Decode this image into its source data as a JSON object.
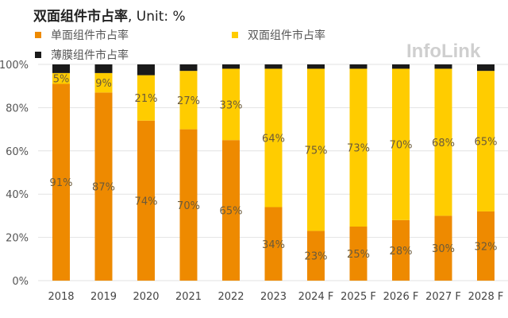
{
  "chart_data": {
    "type": "bar",
    "stacked": true,
    "title": "双面组件市占率",
    "title_unit": ", Unit: %",
    "categories": [
      "2018",
      "2019",
      "2020",
      "2021",
      "2022",
      "2023",
      "2024 F",
      "2025 F",
      "2026 F",
      "2027 F",
      "2028 F"
    ],
    "series": [
      {
        "name": "单面组件市占率",
        "color": "#EE8A00",
        "values": [
          91,
          87,
          74,
          70,
          65,
          34,
          23,
          25,
          28,
          30,
          32
        ]
      },
      {
        "name": "双面组件市占率",
        "color": "#FFCC00",
        "values": [
          5,
          9,
          21,
          27,
          33,
          64,
          75,
          73,
          70,
          68,
          65
        ]
      },
      {
        "name": "薄膜组件市占率",
        "color": "#1A1A1A",
        "values": [
          4,
          4,
          5,
          3,
          2,
          2,
          2,
          2,
          2,
          2,
          3
        ]
      }
    ],
    "labeled_series": [
      0,
      1
    ],
    "ylim": [
      0,
      100
    ],
    "yticks": [
      "0%",
      "20%",
      "40%",
      "60%",
      "80%",
      "100%"
    ],
    "grid": true,
    "legend_placement": "top-left",
    "watermark": "InfoLink"
  }
}
